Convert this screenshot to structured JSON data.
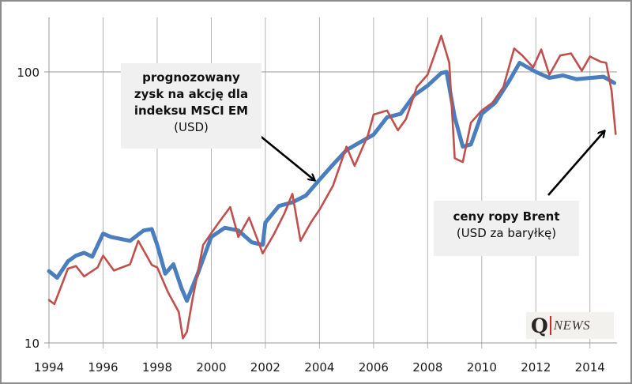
{
  "chart_data": {
    "type": "line",
    "title": "",
    "xlabel": "",
    "ylabel": "",
    "yscale": "log",
    "ylim": [
      10,
      160
    ],
    "xlim": [
      1994,
      2015
    ],
    "grid": true,
    "x_ticks": [
      "1994",
      "1996",
      "1998",
      "2000",
      "2002",
      "2004",
      "2006",
      "2008",
      "2010",
      "2012",
      "2014"
    ],
    "y_ticks": [
      "10",
      "100"
    ],
    "series": [
      {
        "name": "prognozowany zysk na akcję dla indeksu MSCI EM (USD)",
        "color": "#4a7ebf",
        "x": [
          1994.0,
          1994.3,
          1994.7,
          1995.0,
          1995.3,
          1995.6,
          1996.0,
          1996.3,
          1997.0,
          1997.5,
          1997.8,
          1998.0,
          1998.3,
          1998.6,
          1998.9,
          1999.1,
          1999.5,
          2000.0,
          2000.5,
          2001.0,
          2001.5,
          2001.9,
          2002.0,
          2002.5,
          2003.0,
          2003.5,
          2004.0,
          2004.5,
          2005.0,
          2005.5,
          2006.0,
          2006.5,
          2007.0,
          2007.5,
          2008.0,
          2008.5,
          2008.7,
          2009.0,
          2009.3,
          2009.6,
          2010.0,
          2010.5,
          2011.0,
          2011.4,
          2012.0,
          2012.5,
          2013.0,
          2013.5,
          2014.0,
          2014.5,
          2014.9
        ],
        "values": [
          18.4,
          17.4,
          20.0,
          21.0,
          21.5,
          20.8,
          25.3,
          24.6,
          23.8,
          26.0,
          26.3,
          23.0,
          18.0,
          19.5,
          15.9,
          14.3,
          18.0,
          24.6,
          26.6,
          26.0,
          23.5,
          23.0,
          27.8,
          32.0,
          33.0,
          35.0,
          40.0,
          45.5,
          51.5,
          55.0,
          58.7,
          68.0,
          70.0,
          82.0,
          89.0,
          99.0,
          100.0,
          68.0,
          53.0,
          54.0,
          70.0,
          77.0,
          92.0,
          108.0,
          100.0,
          95.0,
          97.0,
          94.0,
          95.0,
          96.0,
          91.0
        ]
      },
      {
        "name": "ceny ropy Brent (USD za baryłkę)",
        "color": "#c0504d",
        "x": [
          1994.0,
          1994.2,
          1994.7,
          1995.0,
          1995.3,
          1995.8,
          1996.0,
          1996.4,
          1997.0,
          1997.3,
          1997.8,
          1998.0,
          1998.4,
          1998.8,
          1998.95,
          1999.1,
          1999.3,
          1999.7,
          2000.0,
          2000.3,
          2000.7,
          2001.0,
          2001.4,
          2001.9,
          2002.3,
          2002.7,
          2003.0,
          2003.3,
          2003.7,
          2004.0,
          2004.5,
          2005.0,
          2005.3,
          2005.8,
          2006.0,
          2006.5,
          2006.9,
          2007.2,
          2007.6,
          2008.0,
          2008.5,
          2008.8,
          2009.0,
          2009.3,
          2009.6,
          2010.0,
          2010.4,
          2010.8,
          2011.2,
          2011.5,
          2011.9,
          2012.2,
          2012.5,
          2012.9,
          2013.3,
          2013.7,
          2014.0,
          2014.4,
          2014.6,
          2014.8,
          2014.95
        ],
        "values": [
          14.4,
          13.9,
          18.8,
          19.2,
          17.6,
          19.0,
          21.0,
          18.5,
          19.5,
          23.8,
          19.4,
          19.0,
          15.4,
          13.0,
          10.4,
          11.0,
          14.4,
          23.0,
          25.4,
          28.0,
          31.7,
          24.6,
          29.0,
          21.4,
          25.0,
          30.0,
          35.5,
          23.8,
          28.0,
          31.0,
          38.0,
          53.0,
          45.0,
          58.7,
          69.6,
          72.0,
          60.9,
          67.0,
          88.0,
          97.7,
          136.0,
          108.0,
          48.0,
          46.5,
          65.0,
          72.0,
          77.0,
          88.0,
          122.0,
          115.0,
          104.0,
          121.0,
          97.5,
          115.0,
          117.0,
          101.0,
          114.0,
          109.0,
          108.0,
          85.0,
          59.0
        ]
      }
    ],
    "annotations": [
      {
        "id": "eps",
        "lines_bold": [
          "prognozowany",
          "zysk na akcję dla",
          "indeksu MSCI EM"
        ],
        "line_regular": "(USD)",
        "arrow_to": [
          2004.0,
          38.0
        ]
      },
      {
        "id": "brent",
        "line_bold": "ceny ropy Brent",
        "line_regular": "(USD za baryłkę)",
        "arrow_to": [
          2014.9,
          62.0
        ]
      }
    ]
  },
  "logo": {
    "q": "Q",
    "news": "NEWS"
  }
}
